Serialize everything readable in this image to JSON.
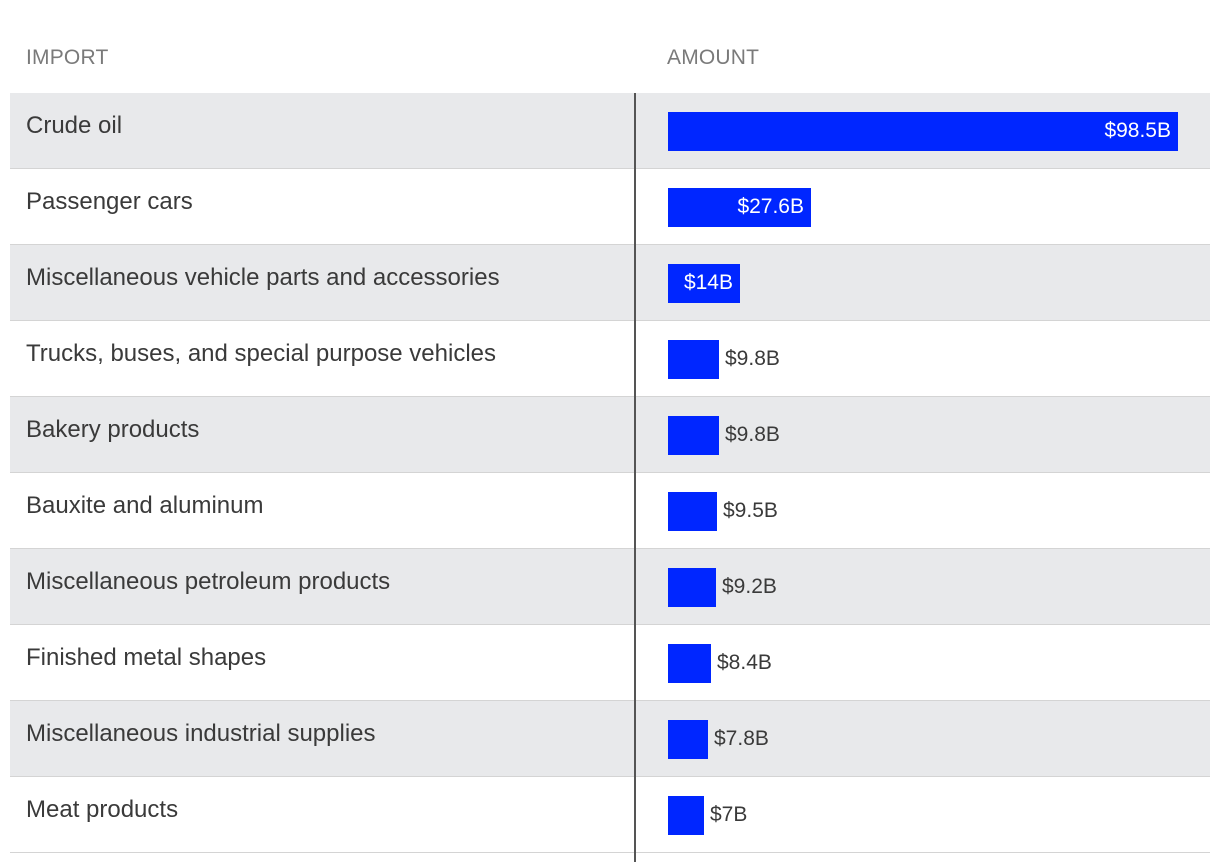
{
  "header": {
    "import": "IMPORT",
    "amount": "AMOUNT"
  },
  "chart_data": {
    "type": "bar",
    "orientation": "horizontal",
    "title": "",
    "xlabel": "AMOUNT",
    "ylabel": "IMPORT",
    "units": "billion USD",
    "xlim": [
      0,
      98.5
    ],
    "bar_color": "#0026ff",
    "categories": [
      "Crude oil",
      "Passenger cars",
      "Miscellaneous vehicle parts and accessories",
      "Trucks, buses, and special purpose vehicles",
      "Bakery products",
      "Bauxite and aluminum",
      "Miscellaneous petroleum products",
      "Finished metal shapes",
      "Miscellaneous industrial supplies",
      "Meat products"
    ],
    "values": [
      98.5,
      27.6,
      14,
      9.8,
      9.8,
      9.5,
      9.2,
      8.4,
      7.8,
      7
    ],
    "value_labels": [
      "$98.5B",
      "$27.6B",
      "$14B",
      "$9.8B",
      "$9.8B",
      "$9.5B",
      "$9.2B",
      "$8.4B",
      "$7.8B",
      "$7B"
    ]
  }
}
